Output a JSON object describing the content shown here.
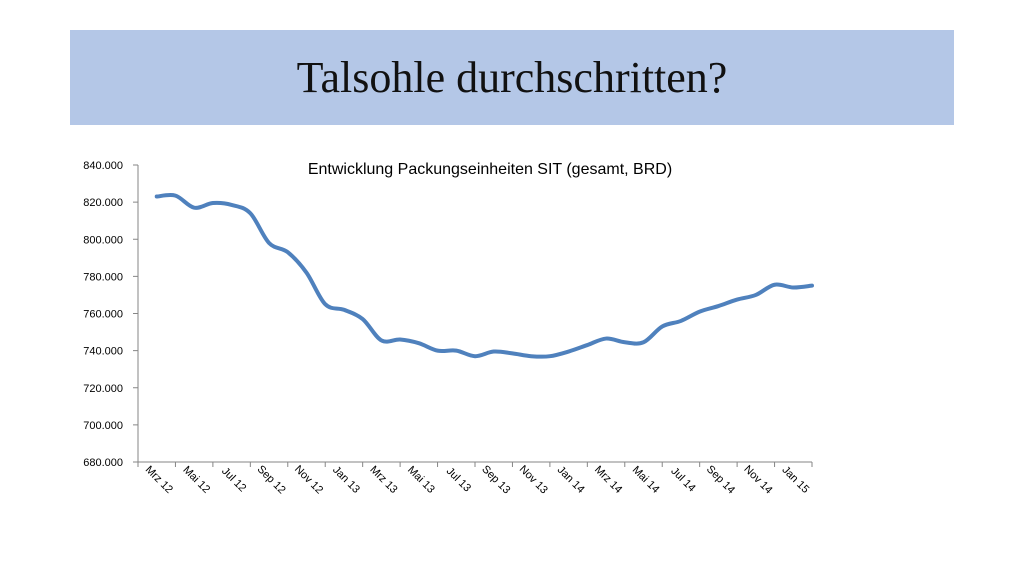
{
  "slide": {
    "title": "Talsohle durchschritten?"
  },
  "chart_data": {
    "type": "line",
    "title": "Entwicklung Packungseinheiten SIT (gesamt, BRD)",
    "xlabel": "",
    "ylabel": "",
    "ylim": [
      680000,
      840000
    ],
    "ytick_values": [
      680000,
      700000,
      720000,
      740000,
      760000,
      780000,
      800000,
      820000,
      840000
    ],
    "ytick_labels": [
      "680.000",
      "700.000",
      "720.000",
      "740.000",
      "760.000",
      "780.000",
      "800.000",
      "820.000",
      "840.000"
    ],
    "categories": [
      "Mrz 12",
      "Mai 12",
      "Jul 12",
      "Sep 12",
      "Nov 12",
      "Jan 13",
      "Mrz 13",
      "Mai 13",
      "Jul 13",
      "Sep 13",
      "Nov 13",
      "Jan 14",
      "Mrz 14",
      "Mai 14",
      "Jul 14",
      "Sep 14",
      "Nov 14",
      "Jan 15"
    ],
    "grid": false,
    "line_color": "#4f81bd",
    "series": [
      {
        "x": [
          "Mrz 12",
          "Apr 12",
          "Mai 12",
          "Jun 12",
          "Jul 12",
          "Aug 12",
          "Sep 12",
          "Okt 12",
          "Nov 12",
          "Dez 12",
          "Jan 13",
          "Feb 13",
          "Mrz 13",
          "Apr 13",
          "Mai 13",
          "Jun 13",
          "Jul 13",
          "Aug 13",
          "Sep 13",
          "Okt 13",
          "Nov 13",
          "Dez 13",
          "Jan 14",
          "Feb 14",
          "Mrz 14",
          "Apr 14",
          "Mai 14",
          "Jun 14",
          "Jul 14",
          "Aug 14",
          "Sep 14",
          "Okt 14",
          "Nov 14",
          "Dez 14",
          "Jan 15",
          "Feb 15"
        ],
        "values": [
          823000,
          823500,
          817000,
          819500,
          818500,
          814000,
          798000,
          793000,
          782000,
          765000,
          762000,
          757000,
          745500,
          746000,
          744000,
          740000,
          740000,
          737000,
          739500,
          738500,
          737000,
          737000,
          739500,
          743000,
          746500,
          744500,
          744500,
          753000,
          756000,
          761000,
          764000,
          767500,
          770000,
          775500,
          774000,
          775000
        ]
      }
    ]
  }
}
